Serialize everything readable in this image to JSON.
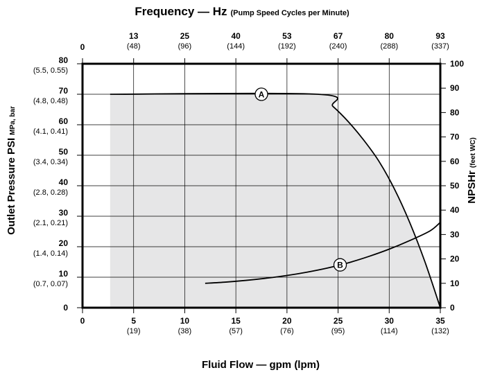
{
  "chart_data": {
    "type": "line",
    "title": "Frequency — Hz",
    "title_note": "(Pump Speed Cycles per Minute)",
    "xlabel": "Fluid Flow — gpm (lpm)",
    "ylabel": "Outlet Pressure PSI",
    "ylabel_units": "MPa, bar",
    "y2label": "NPSHr",
    "y2label_units": "(feet WC)",
    "xlim": [
      0,
      35
    ],
    "ylim": [
      0,
      80
    ],
    "y2lim": [
      0,
      100
    ],
    "grid": true,
    "x_ticks": [
      {
        "value": 0,
        "label": "0",
        "sub": ""
      },
      {
        "value": 5,
        "label": "5",
        "sub": "(19)"
      },
      {
        "value": 10,
        "label": "10",
        "sub": "(38)"
      },
      {
        "value": 15,
        "label": "15",
        "sub": "(57)"
      },
      {
        "value": 20,
        "label": "20",
        "sub": "(76)"
      },
      {
        "value": 25,
        "label": "25",
        "sub": "(95)"
      },
      {
        "value": 30,
        "label": "30",
        "sub": "(114)"
      },
      {
        "value": 35,
        "label": "35",
        "sub": "(132)"
      }
    ],
    "top_ticks": [
      {
        "value": 0,
        "label": "0",
        "sub": ""
      },
      {
        "value": 5,
        "label": "13",
        "sub": "(48)"
      },
      {
        "value": 10,
        "label": "25",
        "sub": "(96)"
      },
      {
        "value": 15,
        "label": "40",
        "sub": "(144)"
      },
      {
        "value": 20,
        "label": "53",
        "sub": "(192)"
      },
      {
        "value": 25,
        "label": "67",
        "sub": "(240)"
      },
      {
        "value": 30,
        "label": "80",
        "sub": "(288)"
      },
      {
        "value": 35,
        "label": "93",
        "sub": "(337)"
      }
    ],
    "y_ticks": [
      {
        "value": 0,
        "label": "0",
        "sub": ""
      },
      {
        "value": 10,
        "label": "10",
        "sub": "(0.7, 0.07)"
      },
      {
        "value": 20,
        "label": "20",
        "sub": "(1.4, 0.14)"
      },
      {
        "value": 30,
        "label": "30",
        "sub": "(2.1, 0.21)"
      },
      {
        "value": 40,
        "label": "40",
        "sub": "(2.8, 0.28)"
      },
      {
        "value": 50,
        "label": "50",
        "sub": "(3.4, 0.34)"
      },
      {
        "value": 60,
        "label": "60",
        "sub": "(4.1, 0.41)"
      },
      {
        "value": 70,
        "label": "70",
        "sub": "(4.8, 0.48)"
      },
      {
        "value": 80,
        "label": "80",
        "sub": "(5.5, 0.55)"
      }
    ],
    "y2_ticks": [
      {
        "value": 0,
        "label": "0"
      },
      {
        "value": 10,
        "label": "10"
      },
      {
        "value": 20,
        "label": "20"
      },
      {
        "value": 30,
        "label": "30"
      },
      {
        "value": 40,
        "label": "40"
      },
      {
        "value": 50,
        "label": "50"
      },
      {
        "value": 60,
        "label": "60"
      },
      {
        "value": 70,
        "label": "70"
      },
      {
        "value": 80,
        "label": "80"
      },
      {
        "value": 90,
        "label": "90"
      },
      {
        "value": 100,
        "label": "100"
      }
    ],
    "operating_region": {
      "x_start": 2.7,
      "color": "#e6e6e7"
    },
    "series": [
      {
        "name": "A",
        "axis": "left",
        "x": [
          2.7,
          23,
          24.5,
          26,
          27.5,
          29,
          30.5,
          32,
          33.5,
          35
        ],
        "y": [
          70,
          70,
          66,
          61,
          55,
          48,
          39,
          28,
          15,
          0
        ],
        "marker_at": 17.5
      },
      {
        "name": "B",
        "axis": "right",
        "x": [
          12,
          14,
          16,
          18,
          20,
          22,
          24,
          26,
          28,
          30,
          32,
          34,
          35
        ],
        "y": [
          10,
          10.5,
          11.2,
          12.1,
          13.2,
          14.6,
          16.3,
          18.4,
          21,
          24,
          27.5,
          31.5,
          35
        ],
        "marker_at": 25.2
      }
    ]
  }
}
